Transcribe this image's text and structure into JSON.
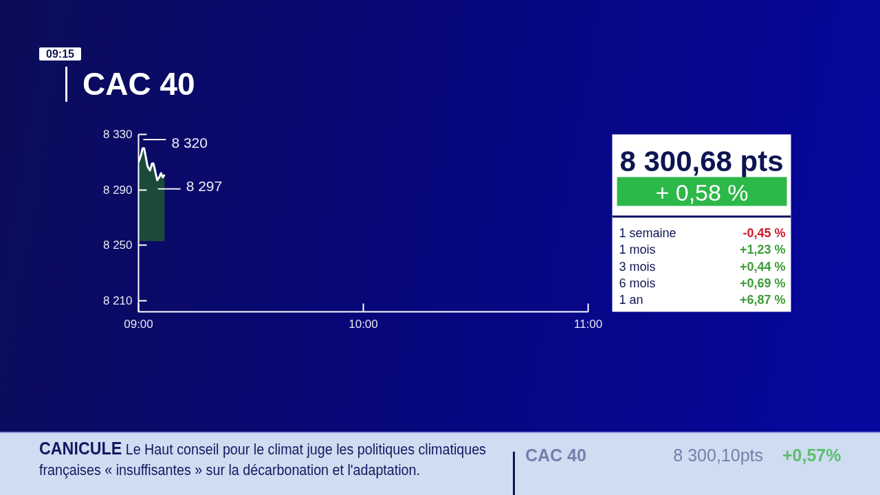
{
  "chart_data": [
    {
      "type": "line",
      "title": "CAC 40",
      "x": [
        9.0,
        9.011,
        9.018,
        9.025,
        9.032,
        9.04,
        9.051,
        9.06,
        9.066,
        9.072,
        9.083,
        9.092,
        9.1,
        9.108,
        9.116
      ],
      "series": [
        {
          "type": "line",
          "color": "#ffffff",
          "values": [
            8310,
            8315,
            8320,
            8320,
            8314,
            8307,
            8304,
            8309,
            8309,
            8305,
            8297,
            8299,
            8302,
            8299,
            8301
          ],
          "lower": [
            8253,
            8253,
            8253,
            8253,
            8253,
            8253,
            8253,
            8253,
            8253,
            8253,
            8253,
            8253,
            8253,
            8253,
            8253
          ],
          "upper": [
            8310,
            8315,
            8320,
            8320,
            8314,
            8307,
            8304,
            8309,
            8309,
            8305,
            8297,
            8299,
            8302,
            8299,
            8301
          ]
        }
      ],
      "xlim": [
        9,
        11
      ],
      "ylim": [
        8202,
        8330
      ],
      "xticks": [
        {
          "value": 9,
          "label": "09:00"
        },
        {
          "value": 10,
          "label": "10:00"
        },
        {
          "value": 11,
          "label": "11:00"
        }
      ],
      "yticks": [
        {
          "value": 8210,
          "label": "8 210"
        },
        {
          "value": 8250,
          "label": "8 250"
        },
        {
          "value": 8290,
          "label": "8 290"
        },
        {
          "value": 8330,
          "label": "8 330"
        }
      ],
      "annotations": [
        "09:15",
        {
          "text": "8 320",
          "x": 9.018,
          "y": 8320
        },
        {
          "text": "8 297",
          "x": 9.083,
          "y": 8297
        },
        "CANICULE",
        "Le Haut conseil pour le climat juge les politiques climatiques françaises « insuffisantes » sur la décarbonation et l'adaptation.",
        "CAC 40",
        "8 300,10pts",
        "+0,57%"
      ]
    },
    {
      "type": "other",
      "title": "8 300,68 pts",
      "subtitle": "+ 0,58 %",
      "categories": [
        "1 semaine",
        "1 mois",
        "3 mois",
        "6 mois",
        "1 an"
      ],
      "values": [
        -0.45,
        1.23,
        0.44,
        0.69,
        6.87
      ],
      "value_labels": [
        "-0,45 %",
        "+1,23 %",
        "+0,44 %",
        "+0,69 %",
        "+6,87 %"
      ]
    }
  ]
}
